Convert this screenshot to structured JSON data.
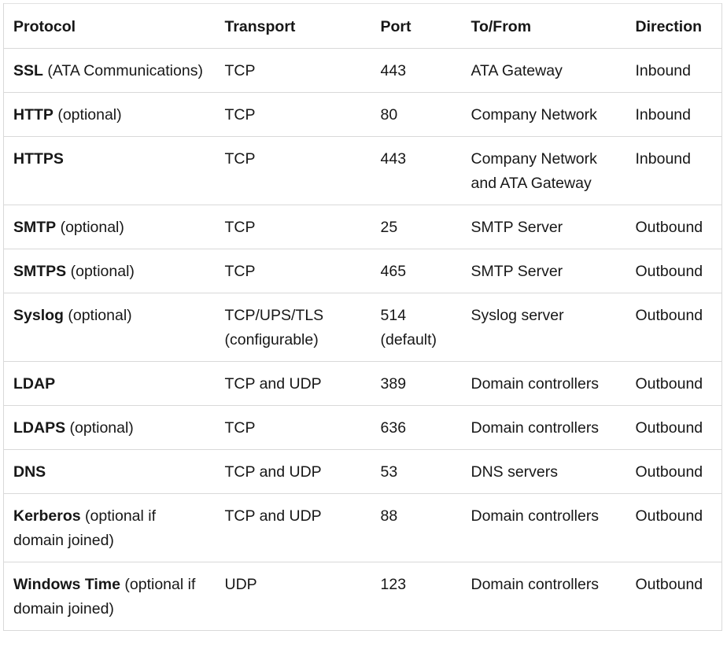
{
  "headers": {
    "protocol": "Protocol",
    "transport": "Transport",
    "port": "Port",
    "to_from": "To/From",
    "direction": "Direction"
  },
  "rows": [
    {
      "name": "SSL",
      "note": " (ATA Communications)",
      "transport": "TCP",
      "port": "443",
      "to_from": "ATA Gateway",
      "direction": "Inbound"
    },
    {
      "name": "HTTP",
      "note": " (optional)",
      "transport": "TCP",
      "port": "80",
      "to_from": "Company Network",
      "direction": "Inbound"
    },
    {
      "name": "HTTPS",
      "note": "",
      "transport": "TCP",
      "port": "443",
      "to_from": "Company Network and ATA Gateway",
      "direction": "Inbound"
    },
    {
      "name": "SMTP",
      "note": " (optional)",
      "transport": "TCP",
      "port": "25",
      "to_from": "SMTP Server",
      "direction": "Outbound"
    },
    {
      "name": "SMTPS",
      "note": " (optional)",
      "transport": "TCP",
      "port": "465",
      "to_from": "SMTP Server",
      "direction": "Outbound"
    },
    {
      "name": "Syslog",
      "note": " (optional)",
      "transport": "TCP/UPS/TLS (configurable)",
      "port": "514 (default)",
      "to_from": "Syslog server",
      "direction": "Outbound"
    },
    {
      "name": "LDAP",
      "note": "",
      "transport": "TCP and UDP",
      "port": "389",
      "to_from": "Domain controllers",
      "direction": "Outbound"
    },
    {
      "name": "LDAPS",
      "note": " (optional)",
      "transport": "TCP",
      "port": "636",
      "to_from": "Domain controllers",
      "direction": "Outbound"
    },
    {
      "name": "DNS",
      "note": "",
      "transport": "TCP and UDP",
      "port": "53",
      "to_from": "DNS servers",
      "direction": "Outbound"
    },
    {
      "name": "Kerberos",
      "note": " (optional if domain joined)",
      "transport": "TCP and UDP",
      "port": "88",
      "to_from": "Domain controllers",
      "direction": "Outbound"
    },
    {
      "name": "Windows Time",
      "note": " (optional if domain joined)",
      "transport": "UDP",
      "port": "123",
      "to_from": "Domain controllers",
      "direction": "Outbound"
    }
  ]
}
